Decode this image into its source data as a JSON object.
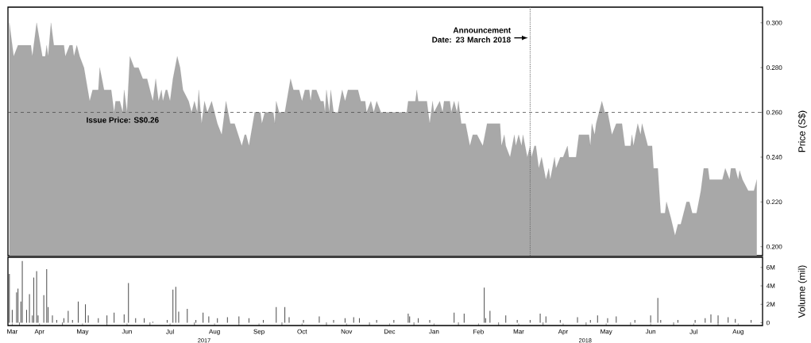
{
  "chart_data": [
    {
      "type": "area",
      "color": "#a8a8a8",
      "x": [
        "2017-03-25",
        "2017-03-28",
        "2017-03-31",
        "2017-04-09",
        "2017-04-10",
        "2017-04-13",
        "2017-04-17",
        "2017-04-19",
        "2017-04-20",
        "2017-04-21",
        "2017-04-23",
        "2017-04-25",
        "2017-05-02",
        "2017-05-03",
        "2017-05-06",
        "2017-05-08",
        "2017-05-09",
        "2017-05-11",
        "2017-05-13",
        "2017-05-16",
        "2017-05-20",
        "2017-05-22",
        "2017-05-26",
        "2017-05-27",
        "2017-05-30",
        "2017-06-04",
        "2017-06-06",
        "2017-06-07",
        "2017-06-10",
        "2017-06-12",
        "2017-06-13",
        "2017-06-15",
        "2017-06-17",
        "2017-06-20",
        "2017-06-23",
        "2017-06-26",
        "2017-06-29",
        "2017-07-03",
        "2017-07-05",
        "2017-07-07",
        "2017-07-09",
        "2017-07-10",
        "2017-07-12",
        "2017-07-13",
        "2017-07-15",
        "2017-07-17",
        "2017-07-20",
        "2017-07-22",
        "2017-07-24",
        "2017-07-28",
        "2017-07-30",
        "2017-08-01",
        "2017-08-03",
        "2017-08-04",
        "2017-08-06",
        "2017-08-08",
        "2017-08-10",
        "2017-08-13",
        "2017-08-17",
        "2017-08-20",
        "2017-08-23",
        "2017-08-26",
        "2017-08-29",
        "2017-09-03",
        "2017-09-05",
        "2017-09-06",
        "2017-09-08",
        "2017-09-12",
        "2017-09-16",
        "2017-09-17",
        "2017-09-19",
        "2017-09-25",
        "2017-09-26",
        "2017-09-27",
        "2017-09-29",
        "2017-10-03",
        "2017-10-07",
        "2017-10-09",
        "2017-10-13",
        "2017-10-15",
        "2017-10-17",
        "2017-10-20",
        "2017-10-21",
        "2017-10-22",
        "2017-10-25",
        "2017-10-28",
        "2017-10-30",
        "2017-10-31",
        "2017-11-01",
        "2017-11-03",
        "2017-11-04",
        "2017-11-06",
        "2017-11-09",
        "2017-11-12",
        "2017-11-14",
        "2017-11-16",
        "2017-11-23",
        "2017-11-25",
        "2017-11-28",
        "2017-11-29",
        "2017-12-02",
        "2017-12-04",
        "2017-12-06",
        "2017-12-09",
        "2017-12-21",
        "2017-12-27",
        "2017-12-28",
        "2018-01-02",
        "2018-01-03",
        "2018-01-04",
        "2018-01-10",
        "2018-01-12",
        "2018-01-14",
        "2018-01-15",
        "2018-01-19",
        "2018-01-21",
        "2018-01-22",
        "2018-01-26",
        "2018-01-27",
        "2018-01-29",
        "2018-01-31",
        "2018-02-01",
        "2018-02-03",
        "2018-02-06",
        "2018-02-09",
        "2018-02-11",
        "2018-02-14",
        "2018-02-18",
        "2018-02-21",
        "2018-03-02",
        "2018-03-03",
        "2018-03-05",
        "2018-03-06",
        "2018-03-09",
        "2018-03-12",
        "2018-03-13",
        "2018-03-15",
        "2018-03-17",
        "2018-03-18",
        "2018-03-21",
        "2018-03-23",
        "2018-03-24",
        "2018-03-26",
        "2018-03-27",
        "2018-03-29",
        "2018-03-31",
        "2018-04-03",
        "2018-04-05",
        "2018-04-06",
        "2018-04-09",
        "2018-04-10",
        "2018-04-13",
        "2018-04-15",
        "2018-04-18",
        "2018-04-19",
        "2018-04-24",
        "2018-04-26",
        "2018-05-03",
        "2018-05-04",
        "2018-05-05",
        "2018-05-07",
        "2018-05-08",
        "2018-05-12",
        "2018-05-14",
        "2018-05-16",
        "2018-05-19",
        "2018-05-22",
        "2018-05-26",
        "2018-05-28",
        "2018-06-01",
        "2018-06-02",
        "2018-06-03",
        "2018-06-06",
        "2018-06-08",
        "2018-06-09",
        "2018-06-13",
        "2018-06-16",
        "2018-06-17",
        "2018-06-20",
        "2018-06-22",
        "2018-06-25",
        "2018-06-26",
        "2018-06-29",
        "2018-07-02",
        "2018-07-04",
        "2018-07-06",
        "2018-07-10",
        "2018-07-12",
        "2018-07-14",
        "2018-07-17",
        "2018-07-20",
        "2018-07-22",
        "2018-07-25",
        "2018-07-26",
        "2018-08-04",
        "2018-08-06",
        "2018-08-09",
        "2018-08-10",
        "2018-08-13",
        "2018-08-15",
        "2018-08-16",
        "2018-08-18",
        "2018-08-22",
        "2018-08-26",
        "2018-08-28"
      ],
      "values": [
        0.3,
        0.285,
        0.29,
        0.29,
        0.285,
        0.3,
        0.285,
        0.285,
        0.29,
        0.285,
        0.3,
        0.29,
        0.29,
        0.285,
        0.29,
        0.29,
        0.285,
        0.29,
        0.285,
        0.28,
        0.265,
        0.27,
        0.27,
        0.28,
        0.27,
        0.27,
        0.26,
        0.265,
        0.265,
        0.26,
        0.27,
        0.26,
        0.285,
        0.28,
        0.28,
        0.275,
        0.275,
        0.265,
        0.275,
        0.265,
        0.27,
        0.265,
        0.27,
        0.27,
        0.265,
        0.275,
        0.285,
        0.28,
        0.27,
        0.265,
        0.26,
        0.265,
        0.26,
        0.27,
        0.255,
        0.265,
        0.26,
        0.265,
        0.255,
        0.25,
        0.265,
        0.255,
        0.255,
        0.245,
        0.25,
        0.25,
        0.245,
        0.26,
        0.26,
        0.255,
        0.26,
        0.26,
        0.255,
        0.265,
        0.26,
        0.26,
        0.275,
        0.27,
        0.27,
        0.265,
        0.27,
        0.27,
        0.265,
        0.27,
        0.27,
        0.265,
        0.265,
        0.26,
        0.27,
        0.26,
        0.27,
        0.26,
        0.26,
        0.27,
        0.265,
        0.27,
        0.27,
        0.265,
        0.265,
        0.26,
        0.265,
        0.26,
        0.265,
        0.26,
        0.26,
        0.26,
        0.265,
        0.265,
        0.27,
        0.265,
        0.265,
        0.255,
        0.265,
        0.26,
        0.265,
        0.26,
        0.265,
        0.265,
        0.26,
        0.265,
        0.26,
        0.265,
        0.255,
        0.255,
        0.245,
        0.25,
        0.25,
        0.245,
        0.255,
        0.255,
        0.245,
        0.25,
        0.245,
        0.24,
        0.25,
        0.245,
        0.25,
        0.245,
        0.25,
        0.24,
        0.245,
        0.24,
        0.245,
        0.245,
        0.235,
        0.24,
        0.23,
        0.235,
        0.23,
        0.24,
        0.235,
        0.24,
        0.24,
        0.245,
        0.24,
        0.24,
        0.25,
        0.25,
        0.245,
        0.255,
        0.25,
        0.255,
        0.265,
        0.26,
        0.26,
        0.25,
        0.255,
        0.255,
        0.245,
        0.245,
        0.25,
        0.245,
        0.255,
        0.25,
        0.255,
        0.245,
        0.245,
        0.235,
        0.235,
        0.215,
        0.215,
        0.22,
        0.213,
        0.205,
        0.21,
        0.21,
        0.22,
        0.22,
        0.215,
        0.215,
        0.225,
        0.235,
        0.235,
        0.23,
        0.23,
        0.235,
        0.23,
        0.235,
        0.235,
        0.23,
        0.234,
        0.23,
        0.225,
        0.225,
        0.23
      ],
      "xlim": [
        "2017-03-24",
        "2018-09-01"
      ],
      "ylim": [
        0.196,
        0.307
      ],
      "yticks": [
        {
          "value": 0.2,
          "label": "0.200"
        },
        {
          "value": 0.22,
          "label": "0.220"
        },
        {
          "value": 0.24,
          "label": "0.240"
        },
        {
          "value": 0.26,
          "label": "0.260"
        },
        {
          "value": 0.28,
          "label": "0.280"
        },
        {
          "value": 0.3,
          "label": "0.300"
        }
      ],
      "ylabel": "Price (S$)",
      "tick_labels": "y",
      "ref_lines": [
        {
          "axis": "y",
          "value": 0.26,
          "label": "Issue Price: S$0.26",
          "line_style": "dashed"
        },
        {
          "axis": "x",
          "value": "2018-03-23",
          "label": "Announcement Date: 23 March 2018",
          "line_style": "dotted"
        }
      ]
    },
    {
      "type": "bar",
      "color": "#555555",
      "x": [
        "2017-03-25",
        "2017-03-27",
        "2017-03-30",
        "2017-03-31",
        "2017-04-02",
        "2017-04-03",
        "2017-04-06",
        "2017-04-08",
        "2017-04-10",
        "2017-04-11",
        "2017-04-13",
        "2017-04-14",
        "2017-04-18",
        "2017-04-20",
        "2017-04-21",
        "2017-04-24",
        "2017-04-27",
        "2017-05-02",
        "2017-05-05",
        "2017-05-08",
        "2017-05-12",
        "2017-05-17",
        "2017-05-19",
        "2017-05-26",
        "2017-06-01",
        "2017-06-06",
        "2017-06-13",
        "2017-06-16",
        "2017-06-21",
        "2017-06-27",
        "2017-07-03",
        "2017-07-13",
        "2017-07-17",
        "2017-07-19",
        "2017-07-21",
        "2017-07-27",
        "2017-08-02",
        "2017-08-07",
        "2017-08-11",
        "2017-08-17",
        "2017-08-24",
        "2017-09-01",
        "2017-09-08",
        "2017-09-18",
        "2017-09-27",
        "2017-10-03",
        "2017-10-06",
        "2017-10-16",
        "2017-10-27",
        "2017-11-06",
        "2017-11-14",
        "2017-11-20",
        "2017-11-24",
        "2017-12-06",
        "2017-12-18",
        "2017-12-28",
        "2017-12-29",
        "2018-01-04",
        "2018-01-12",
        "2018-01-29",
        "2018-02-05",
        "2018-02-19",
        "2018-02-20",
        "2018-02-23",
        "2018-03-06",
        "2018-03-14",
        "2018-03-23",
        "2018-03-30",
        "2018-04-03",
        "2018-04-13",
        "2018-04-25",
        "2018-05-04",
        "2018-05-09",
        "2018-05-16",
        "2018-05-22",
        "2018-06-04",
        "2018-06-15",
        "2018-06-20",
        "2018-06-22",
        "2018-07-04",
        "2018-07-16",
        "2018-07-23",
        "2018-07-27",
        "2018-08-01",
        "2018-08-08",
        "2018-08-13",
        "2018-08-24"
      ],
      "values": [
        5.3,
        1.4,
        3.3,
        3.7,
        2.3,
        6.7,
        1.4,
        3.1,
        0.8,
        4.9,
        5.6,
        0.8,
        3.0,
        5.8,
        1.7,
        0.8,
        0.3,
        0.5,
        1.3,
        0.3,
        2.3,
        2.0,
        0.8,
        0.5,
        0.8,
        1.1,
        0.9,
        4.3,
        0.5,
        0.5,
        0.1,
        0.3,
        3.6,
        3.9,
        1.2,
        1.5,
        0.3,
        1.1,
        0.7,
        0.5,
        0.6,
        0.7,
        0.5,
        0.3,
        1.7,
        1.7,
        0.6,
        0.3,
        0.7,
        0.3,
        0.5,
        0.6,
        0.5,
        0.3,
        0.3,
        1.0,
        0.7,
        0.5,
        0.3,
        1.1,
        1.0,
        3.8,
        0.5,
        1.3,
        0.8,
        0.3,
        0.3,
        1.0,
        0.7,
        0.3,
        0.6,
        0.3,
        0.8,
        0.5,
        0.7,
        0.3,
        0.8,
        2.7,
        0.3,
        0.3,
        0.3,
        0.5,
        0.9,
        0.8,
        0.6,
        0.4,
        0.3
      ],
      "xlim": [
        "2017-03-24",
        "2018-09-01"
      ],
      "ylim": [
        -0.3,
        7.1
      ],
      "yticks": [
        0,
        {
          "value": 2,
          "label": "2M"
        },
        {
          "value": 4,
          "label": "4M"
        },
        {
          "value": 6,
          "label": "6M"
        }
      ],
      "xticks": [
        {
          "value": "2017-03-27",
          "label": "Mar"
        },
        {
          "value": "2017-04-15",
          "label": "Apr"
        },
        {
          "value": "2017-05-15",
          "label": "May"
        },
        {
          "value": "2017-06-15",
          "label": "Jun"
        },
        {
          "value": "2017-07-15",
          "label": "Jul"
        },
        {
          "value": "2017-08-15",
          "label": "Aug"
        },
        {
          "value": "2017-09-15",
          "label": "Sep"
        },
        {
          "value": "2017-10-15",
          "label": "Oct"
        },
        {
          "value": "2017-11-15",
          "label": "Nov"
        },
        {
          "value": "2017-12-15",
          "label": "Dec"
        },
        {
          "value": "2018-01-15",
          "label": "Jan"
        },
        {
          "value": "2018-02-15",
          "label": "Feb"
        },
        {
          "value": "2018-03-15",
          "label": "Mar"
        },
        {
          "value": "2018-04-15",
          "label": "Apr"
        },
        {
          "value": "2018-05-15",
          "label": "May"
        },
        {
          "value": "2018-06-15",
          "label": "Jun"
        },
        {
          "value": "2018-07-15",
          "label": "Jul"
        },
        {
          "value": "2018-08-15",
          "label": "Aug"
        },
        {
          "value": "2017-04-01",
          "label": null
        },
        {
          "value": "2017-05-01",
          "label": null
        },
        {
          "value": "2017-06-01",
          "label": null
        },
        {
          "value": "2017-07-01",
          "label": null
        },
        {
          "value": "2017-08-01",
          "label": null
        },
        {
          "value": "2017-09-01",
          "label": null
        },
        {
          "value": "2017-10-01",
          "label": null
        },
        {
          "value": "2017-11-01",
          "label": null
        },
        {
          "value": "2017-12-01",
          "label": null
        },
        {
          "value": "2018-01-01",
          "label": null
        },
        {
          "value": "2018-02-01",
          "label": null
        },
        {
          "value": "2018-03-01",
          "label": null
        },
        {
          "value": "2018-04-01",
          "label": null
        },
        {
          "value": "2018-05-01",
          "label": null
        },
        {
          "value": "2018-06-01",
          "label": null
        },
        {
          "value": "2018-07-01",
          "label": null
        },
        {
          "value": "2018-08-01",
          "label": null
        }
      ],
      "ylabel": "Volume (mil)",
      "annotations": [
        "2017",
        "2018"
      ]
    }
  ]
}
